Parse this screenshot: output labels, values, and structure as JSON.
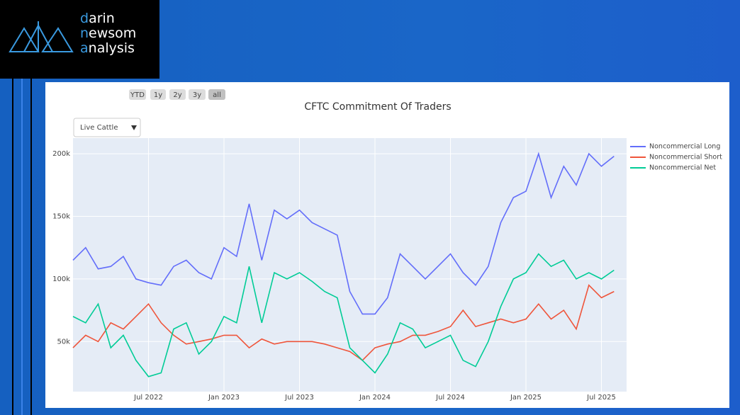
{
  "logo": {
    "lines": [
      "darin",
      "newsom",
      "analysis"
    ]
  },
  "range_buttons": [
    "YTD",
    "1y",
    "2y",
    "3y",
    "all"
  ],
  "dropdown": "Live Cattle",
  "chart_data": {
    "type": "line",
    "title": "CFTC Commitment Of Traders",
    "x": [
      "2022-01",
      "2022-02",
      "2022-03",
      "2022-04",
      "2022-05",
      "2022-06",
      "2022-07",
      "2022-08",
      "2022-09",
      "2022-10",
      "2022-11",
      "2022-12",
      "2023-01",
      "2023-02",
      "2023-03",
      "2023-04",
      "2023-05",
      "2023-06",
      "2023-07",
      "2023-08",
      "2023-09",
      "2023-10",
      "2023-11",
      "2023-12",
      "2024-01",
      "2024-02",
      "2024-03",
      "2024-04",
      "2024-05",
      "2024-06",
      "2024-07",
      "2024-08",
      "2024-09",
      "2024-10",
      "2024-11",
      "2024-12",
      "2025-01",
      "2025-02",
      "2025-03",
      "2025-04",
      "2025-05",
      "2025-06",
      "2025-07",
      "2025-08"
    ],
    "series": [
      {
        "name": "Noncommercial Long",
        "color": "#636efa",
        "values": [
          115000,
          125000,
          108000,
          110000,
          118000,
          100000,
          97000,
          95000,
          110000,
          115000,
          105000,
          100000,
          125000,
          118000,
          160000,
          115000,
          155000,
          148000,
          155000,
          145000,
          140000,
          135000,
          90000,
          72000,
          72000,
          85000,
          120000,
          110000,
          100000,
          110000,
          120000,
          105000,
          95000,
          110000,
          145000,
          165000,
          170000,
          200000,
          165000,
          190000,
          175000,
          200000,
          190000,
          198000
        ]
      },
      {
        "name": "Noncommercial Short",
        "color": "#ef553b",
        "values": [
          45000,
          55000,
          50000,
          65000,
          60000,
          70000,
          80000,
          65000,
          55000,
          48000,
          50000,
          52000,
          55000,
          55000,
          45000,
          52000,
          48000,
          50000,
          50000,
          50000,
          48000,
          45000,
          42000,
          35000,
          45000,
          48000,
          50000,
          55000,
          55000,
          58000,
          62000,
          75000,
          62000,
          65000,
          68000,
          65000,
          68000,
          80000,
          68000,
          75000,
          60000,
          95000,
          85000,
          90000
        ]
      },
      {
        "name": "Noncommercial Net",
        "color": "#00cc96",
        "values": [
          70000,
          65000,
          80000,
          45000,
          55000,
          35000,
          22000,
          25000,
          60000,
          65000,
          40000,
          50000,
          70000,
          65000,
          110000,
          65000,
          105000,
          100000,
          105000,
          98000,
          90000,
          85000,
          45000,
          35000,
          25000,
          40000,
          65000,
          60000,
          45000,
          50000,
          55000,
          35000,
          30000,
          50000,
          78000,
          100000,
          105000,
          120000,
          110000,
          115000,
          100000,
          105000,
          100000,
          107000
        ]
      }
    ],
    "xlim": [
      "2022-01",
      "2025-09"
    ],
    "xticks": [
      {
        "value": "2022-07",
        "label": "Jul 2022"
      },
      {
        "value": "2023-01",
        "label": "Jan 2023"
      },
      {
        "value": "2023-07",
        "label": "Jul 2023"
      },
      {
        "value": "2024-01",
        "label": "Jan 2024"
      },
      {
        "value": "2024-07",
        "label": "Jul 2024"
      },
      {
        "value": "2025-01",
        "label": "Jan 2025"
      },
      {
        "value": "2025-07",
        "label": "Jul 2025"
      }
    ],
    "ylim": [
      10000,
      212500
    ],
    "yticks": [
      {
        "value": 50000,
        "label": "50k"
      },
      {
        "value": 100000,
        "label": "100k"
      },
      {
        "value": 150000,
        "label": "150k"
      },
      {
        "value": 200000,
        "label": "200k"
      }
    ],
    "grid": true,
    "legend": "right"
  }
}
